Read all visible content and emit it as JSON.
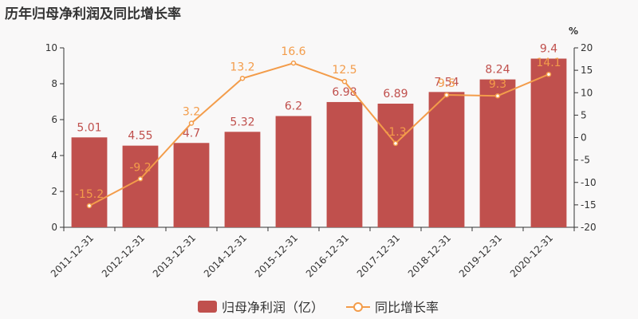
{
  "chart_data": {
    "type": "bar",
    "title": "历年归母净利润及同比增长率",
    "categories": [
      "2011-12-31",
      "2012-12-31",
      "2013-12-31",
      "2014-12-31",
      "2015-12-31",
      "2016-12-31",
      "2017-12-31",
      "2018-12-31",
      "2019-12-31",
      "2020-12-31"
    ],
    "series": [
      {
        "name": "归母净利润（亿）",
        "type": "bar",
        "axis": "left",
        "color": "#c0504d",
        "values": [
          5.01,
          4.55,
          4.7,
          5.32,
          6.2,
          6.98,
          6.89,
          7.54,
          8.24,
          9.4
        ],
        "labels": [
          "5.01",
          "4.55",
          "4.7",
          "5.32",
          "6.2",
          "6.98",
          "6.89",
          "7.54",
          "8.24",
          "9.4"
        ]
      },
      {
        "name": "同比增长率",
        "type": "line",
        "axis": "right",
        "color": "#f39c4a",
        "values": [
          -15.2,
          -9.2,
          3.2,
          13.2,
          16.6,
          12.5,
          -1.3,
          9.5,
          9.3,
          14.1
        ],
        "labels": [
          "-15.2",
          "-9.2",
          "3.2",
          "13.2",
          "16.6",
          "12.5",
          "-1.3",
          "9.5",
          "9.3",
          "14.1"
        ]
      }
    ],
    "y_left": {
      "min": 0,
      "max": 10,
      "ticks": [
        0,
        2,
        4,
        6,
        8,
        10
      ]
    },
    "y_right": {
      "min": -20,
      "max": 20,
      "ticks": [
        -20,
        -15,
        -10,
        -5,
        0,
        5,
        10,
        15,
        20
      ],
      "unit": "%"
    },
    "grid": false,
    "legend_position": "bottom"
  }
}
